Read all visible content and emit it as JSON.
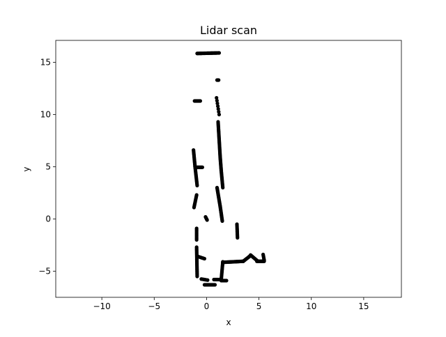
{
  "chart_data": {
    "type": "scatter",
    "title": "Lidar scan",
    "xlabel": "x",
    "ylabel": "y",
    "xlim": [
      -14.4,
      18.6
    ],
    "ylim": [
      -7.5,
      17.1
    ],
    "xticks": [
      -10,
      -5,
      0,
      5,
      10,
      15
    ],
    "yticks": [
      -5,
      0,
      5,
      10,
      15
    ],
    "xtick_labels": [
      "−10",
      "−5",
      "0",
      "5",
      "10",
      "15"
    ],
    "ytick_labels": [
      "−5",
      "0",
      "5",
      "10",
      "15"
    ],
    "grid": false,
    "marker_color": "#000000",
    "series": [
      {
        "segments": [
          {
            "from": [
              -0.9,
              15.85
            ],
            "to": [
              1.2,
              15.9
            ],
            "n": 36
          },
          {
            "from": [
              1.0,
              13.3
            ],
            "to": [
              1.15,
              13.3
            ],
            "n": 4
          },
          {
            "from": [
              -1.15,
              11.3
            ],
            "to": [
              -0.6,
              11.3
            ],
            "n": 10
          },
          {
            "from": [
              0.95,
              11.6
            ],
            "to": [
              1.2,
              10.0
            ],
            "n": 7
          },
          {
            "from": [
              1.1,
              9.3
            ],
            "to": [
              1.3,
              5.9
            ],
            "n": 36
          },
          {
            "from": [
              1.3,
              5.9
            ],
            "to": [
              1.4,
              4.6
            ],
            "n": 16
          },
          {
            "from": [
              1.4,
              4.6
            ],
            "to": [
              1.55,
              3.0
            ],
            "n": 16
          },
          {
            "from": [
              1.0,
              3.0
            ],
            "to": [
              1.3,
              1.2
            ],
            "n": 24
          },
          {
            "from": [
              1.3,
              1.2
            ],
            "to": [
              1.5,
              -0.2
            ],
            "n": 18
          },
          {
            "from": [
              -1.25,
              6.6
            ],
            "to": [
              -1.1,
              5.0
            ],
            "n": 18
          },
          {
            "from": [
              -1.1,
              5.0
            ],
            "to": [
              -0.9,
              3.2
            ],
            "n": 18
          },
          {
            "from": [
              -0.95,
              2.3
            ],
            "to": [
              -1.2,
              1.1
            ],
            "n": 12
          },
          {
            "from": [
              -0.9,
              4.95
            ],
            "to": [
              -0.4,
              4.95
            ],
            "n": 8
          },
          {
            "from": [
              -0.1,
              0.2
            ],
            "to": [
              0.05,
              -0.1
            ],
            "n": 6
          },
          {
            "from": [
              -0.95,
              -0.9
            ],
            "to": [
              -0.95,
              -2.0
            ],
            "n": 10
          },
          {
            "from": [
              -0.95,
              -2.7
            ],
            "to": [
              -0.9,
              -5.5
            ],
            "n": 28
          },
          {
            "from": [
              -0.8,
              -3.6
            ],
            "to": [
              -0.2,
              -3.8
            ],
            "n": 10
          },
          {
            "from": [
              -0.5,
              -5.75
            ],
            "to": [
              0.1,
              -5.85
            ],
            "n": 8
          },
          {
            "from": [
              -0.2,
              -6.3
            ],
            "to": [
              0.8,
              -6.3
            ],
            "n": 16
          },
          {
            "from": [
              0.7,
              -5.8
            ],
            "to": [
              1.4,
              -5.8
            ],
            "n": 10
          },
          {
            "from": [
              1.4,
              -5.9
            ],
            "to": [
              1.9,
              -5.9
            ],
            "n": 8
          },
          {
            "from": [
              1.4,
              -5.8
            ],
            "to": [
              1.55,
              -4.1
            ],
            "n": 16
          },
          {
            "from": [
              1.55,
              -4.15
            ],
            "to": [
              3.5,
              -4.05
            ],
            "n": 36
          },
          {
            "from": [
              3.5,
              -4.05
            ],
            "to": [
              4.2,
              -3.5
            ],
            "n": 14
          },
          {
            "from": [
              2.9,
              -0.5
            ],
            "to": [
              2.95,
              -1.8
            ],
            "n": 12
          },
          {
            "from": [
              4.2,
              -3.45
            ],
            "to": [
              4.9,
              -4.05
            ],
            "n": 10
          },
          {
            "from": [
              4.8,
              -4.05
            ],
            "to": [
              5.5,
              -4.05
            ],
            "n": 12
          },
          {
            "from": [
              5.4,
              -3.4
            ],
            "to": [
              5.5,
              -3.95
            ],
            "n": 6
          }
        ]
      }
    ]
  }
}
